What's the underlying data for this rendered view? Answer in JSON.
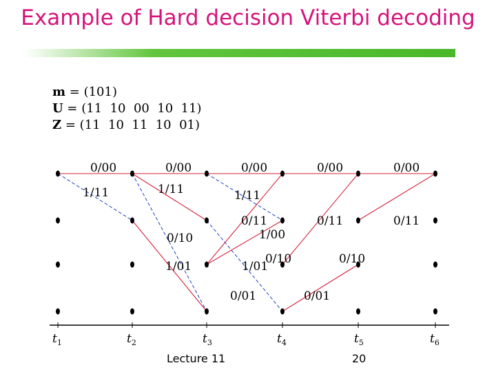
{
  "title": "Example of Hard decision Viterbi decoding",
  "equations": [
    {
      "var": "m",
      "text": " = (101)"
    },
    {
      "var": "U",
      "text": " = (11  10  00  10  11)"
    },
    {
      "var": "Z",
      "text": " = (11  10  11  10  01)"
    }
  ],
  "time_labels": [
    {
      "main": "t",
      "sub": "1"
    },
    {
      "main": "t",
      "sub": "2"
    },
    {
      "main": "t",
      "sub": "3"
    },
    {
      "main": "t",
      "sub": "4"
    },
    {
      "main": "t",
      "sub": "5"
    },
    {
      "main": "t",
      "sub": "6"
    }
  ],
  "branch_labels": [
    "0/00",
    "0/00",
    "0/00",
    "0/00",
    "0/00",
    "1/11",
    "1/11",
    "1/11",
    "0/11",
    "1/00",
    "0/11",
    "0/11",
    "0/10",
    "0/10",
    "0/10",
    "1/01",
    "1/01",
    "0/01",
    "0/01"
  ],
  "footer": {
    "lecture": "Lecture 11",
    "page": "20"
  },
  "colors": {
    "title": "#d6137a",
    "path": "#d2203a",
    "survivor": "#1f3fbf",
    "bar": "#49b82a"
  }
}
